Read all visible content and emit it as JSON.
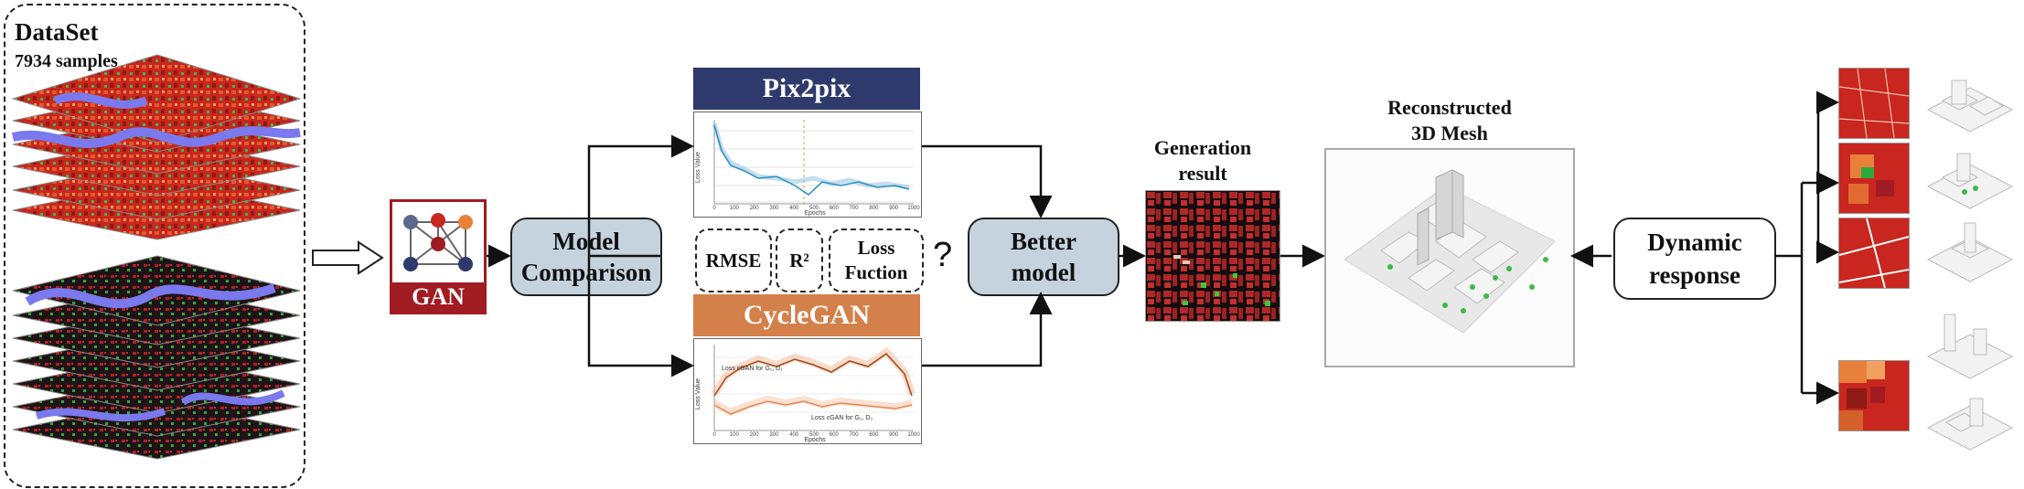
{
  "dataset": {
    "title": "DataSet",
    "samples": "7934 samples"
  },
  "gan": {
    "label": "GAN"
  },
  "model_comparison": {
    "line1": "Model",
    "line2": "Comparison"
  },
  "pix2pix": {
    "title": "Pix2pix",
    "x_ticks": [
      "0",
      "100",
      "200",
      "300",
      "400",
      "500",
      "600",
      "700",
      "800",
      "900",
      "1000"
    ],
    "xlabel": "Epochs",
    "ylabel": "Loss Value"
  },
  "cyclegan": {
    "title": "CycleGAN",
    "x_ticks": [
      "0",
      "100",
      "200",
      "300",
      "400",
      "500",
      "600",
      "700",
      "800",
      "900",
      "1000"
    ],
    "xlabel": "Epochs",
    "ylabel": "Loss Value",
    "series1": "Loss cGAN for G₁, D₁",
    "series2": "Loss cGAN for G₂, D₂"
  },
  "metrics": [
    {
      "label": "RMSE"
    },
    {
      "label": "R²"
    },
    {
      "label": "Loss\nFuction"
    }
  ],
  "question_mark": "?",
  "better_model": {
    "line1": "Better",
    "line2": "model"
  },
  "generation_result": {
    "line1": "Generation",
    "line2": "result"
  },
  "reconstructed": {
    "line1": "Reconstructed",
    "line2": "3D Mesh"
  },
  "dynamic_response": {
    "line1": "Dynamic",
    "line2": "response"
  },
  "colors": {
    "pix2pix_header": "#2d3a6b",
    "cyclegan_header": "#d4804a",
    "box_fill": "#c5d3df",
    "gan_red": "#a01c22",
    "map_red": "#c8261e",
    "map_blue": "#7a7aee"
  }
}
